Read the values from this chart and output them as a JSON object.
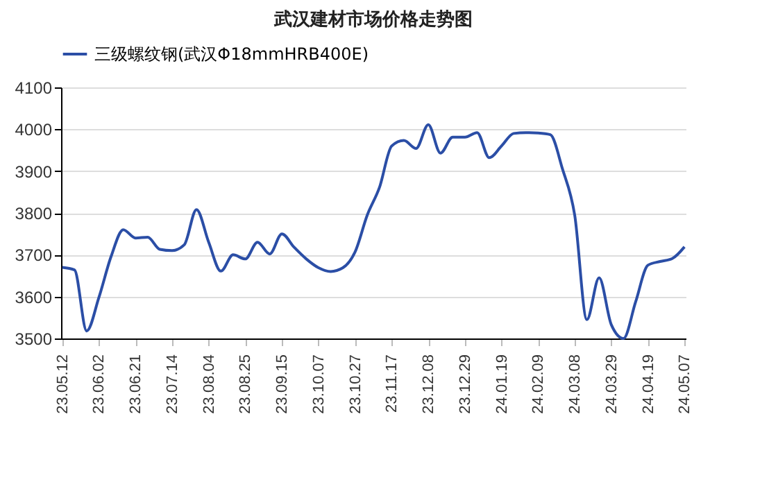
{
  "chart_data": {
    "type": "line",
    "title": "武汉建材市场价格走势图",
    "categories": [
      "23.05.12",
      null,
      null,
      "23.06.02",
      null,
      null,
      "23.06.21",
      null,
      null,
      "23.07.14",
      null,
      null,
      "23.08.04",
      null,
      null,
      "23.08.25",
      null,
      null,
      "23.09.15",
      null,
      null,
      "23.10.07",
      null,
      null,
      "23.10.27",
      null,
      null,
      "23.11.17",
      null,
      null,
      "23.12.08",
      null,
      null,
      "23.12.29",
      null,
      null,
      "24.01.19",
      null,
      null,
      "24.02.09",
      null,
      null,
      "24.03.08",
      null,
      null,
      "24.03.29",
      null,
      null,
      "24.04.19",
      null,
      null,
      "24.05.07"
    ],
    "series": [
      {
        "name": "三级螺纹钢(武汉Φ18mmHRB400E)",
        "color": "#2b4ea6",
        "values": [
          3670,
          3664,
          3518,
          3598,
          3696,
          3760,
          3740,
          3742,
          3713,
          3710,
          3724,
          3808,
          3730,
          3661,
          3700,
          3690,
          3730,
          3702,
          3750,
          3718,
          3690,
          3669,
          3660,
          3669,
          3707,
          3795,
          3861,
          3960,
          3973,
          3954,
          4011,
          3943,
          3981,
          3981,
          3992,
          3932,
          3960,
          3990,
          3992,
          3991,
          3987,
          3905,
          3795,
          3545,
          3645,
          3533,
          3500,
          3588,
          3675,
          3684,
          3691,
          3719
        ]
      }
    ],
    "ylim": [
      3500,
      4100
    ],
    "yticks": [
      3500,
      3600,
      3700,
      3800,
      3900,
      4000,
      4100
    ],
    "grid": "y",
    "legend": "top",
    "marker": "none",
    "line_style": "solid"
  }
}
